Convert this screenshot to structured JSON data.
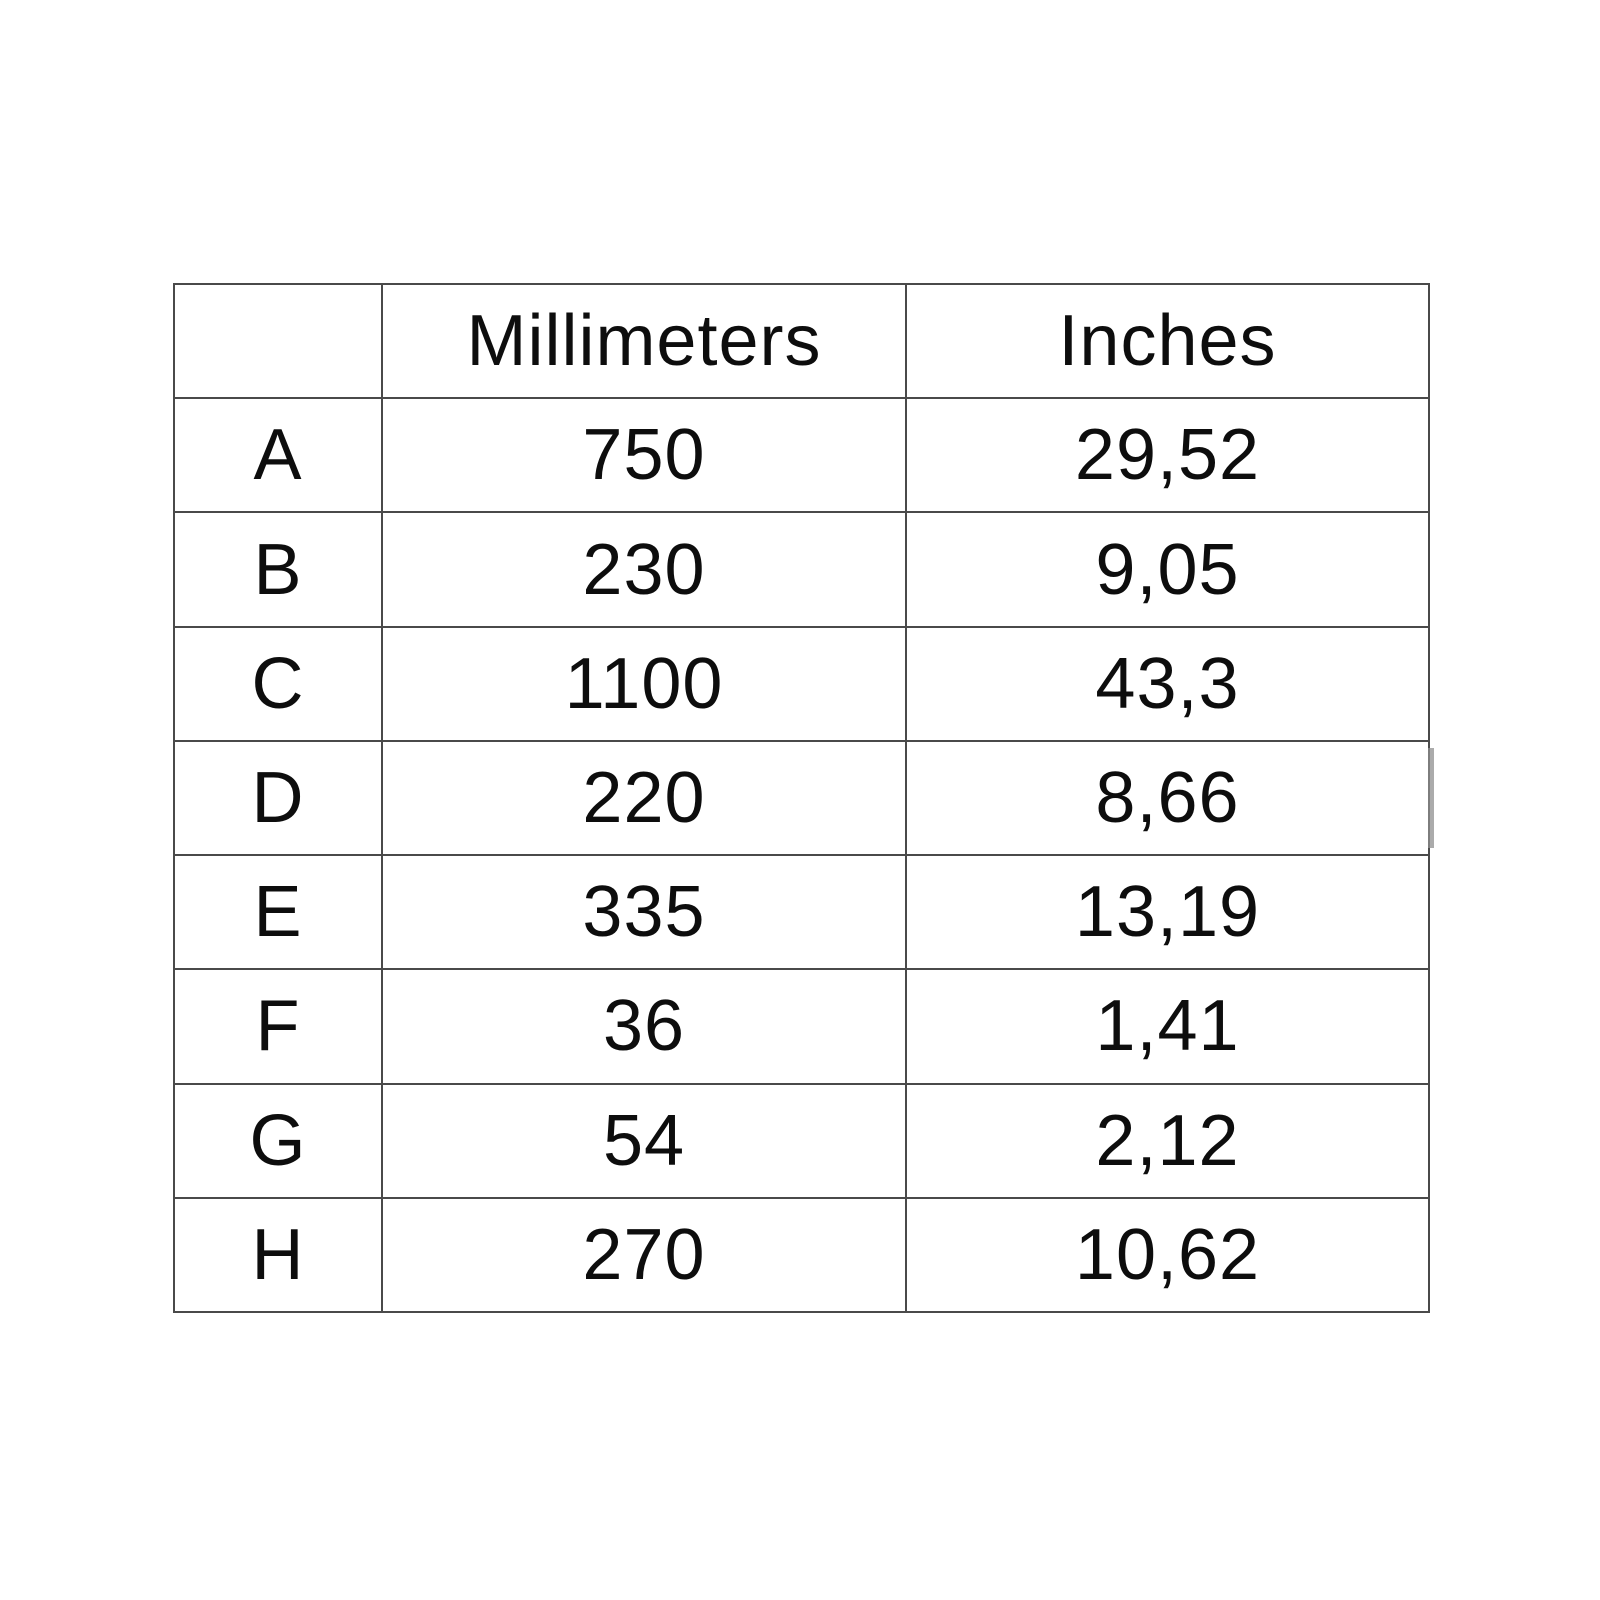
{
  "table": {
    "headers": {
      "label": "",
      "mm": "Millimeters",
      "inches": "Inches"
    },
    "rows": [
      {
        "label": "A",
        "mm": "750",
        "inches": "29,52"
      },
      {
        "label": "B",
        "mm": "230",
        "inches": "9,05"
      },
      {
        "label": "C",
        "mm": "1100",
        "inches": "43,3"
      },
      {
        "label": "D",
        "mm": "220",
        "inches": "8,66"
      },
      {
        "label": "E",
        "mm": "335",
        "inches": "13,19"
      },
      {
        "label": "F",
        "mm": "36",
        "inches": "1,41"
      },
      {
        "label": "G",
        "mm": "54",
        "inches": "2,12"
      },
      {
        "label": "H",
        "mm": "270",
        "inches": "10,62"
      }
    ]
  }
}
